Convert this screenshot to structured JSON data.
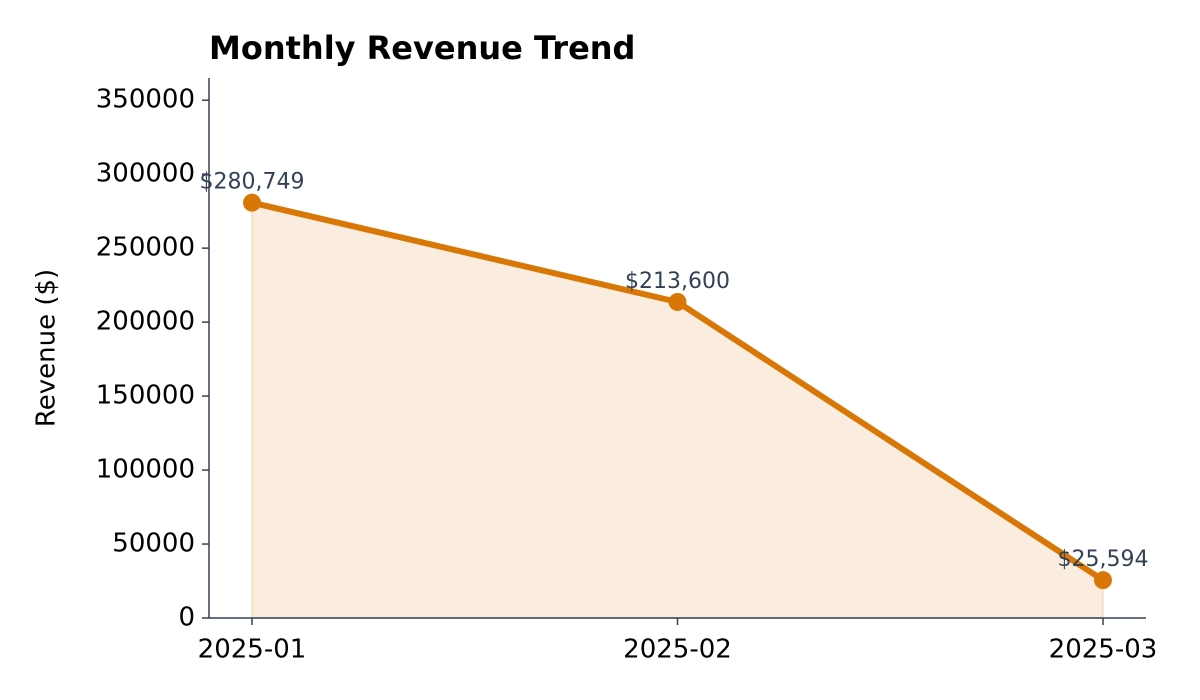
{
  "chart_data": {
    "type": "line",
    "title": "Monthly Revenue Trend",
    "y_label": "Revenue ($)",
    "categories": [
      "2025-01",
      "2025-02",
      "2025-03"
    ],
    "series": [
      {
        "name": "Revenue",
        "color": "#d97706",
        "values": [
          280749,
          213600,
          25594
        ],
        "value_labels": [
          "$280,749",
          "$213,600",
          "$25,594"
        ]
      }
    ],
    "fill_area": true,
    "ylim": [
      0,
      365000
    ],
    "yticks": [
      0,
      50000,
      100000,
      150000,
      200000,
      250000,
      300000,
      350000
    ]
  }
}
